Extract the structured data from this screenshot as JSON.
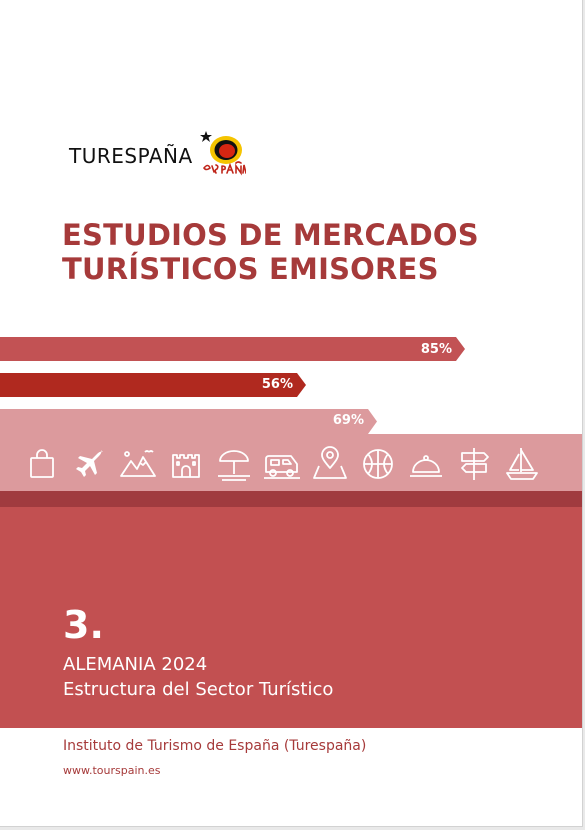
{
  "brand": {
    "name": "TURESPAÑA",
    "mark_text": "España"
  },
  "title": {
    "line1": "ESTUDIOS DE MERCADOS",
    "line2": "TURÍSTICOS EMISORES"
  },
  "bars": [
    {
      "label": "85%",
      "value": 85,
      "color": "#c25254"
    },
    {
      "label": "56%",
      "value": 56,
      "color": "#b0291f"
    },
    {
      "label": "69%",
      "value": 69,
      "color": "#dc9a9d"
    }
  ],
  "icons": [
    "shopping-bag-icon",
    "airplane-icon",
    "mountains-icon",
    "castle-icon",
    "beach-umbrella-icon",
    "campervan-icon",
    "map-pin-icon",
    "basketball-icon",
    "cloche-icon",
    "signpost-icon",
    "sailboat-icon"
  ],
  "chapter": {
    "number": "3.",
    "country": "ALEMANIA 2024",
    "subtitle": "Estructura del Sector Turístico"
  },
  "footer": {
    "institute": "Instituto de Turismo de España (Turespaña)",
    "website": "www.tourspain.es"
  },
  "colors": {
    "title": "#a63a3a",
    "main_block": "#c25051",
    "thin_bar": "#a03b3f",
    "icon_strip": "#dc9a9d"
  }
}
